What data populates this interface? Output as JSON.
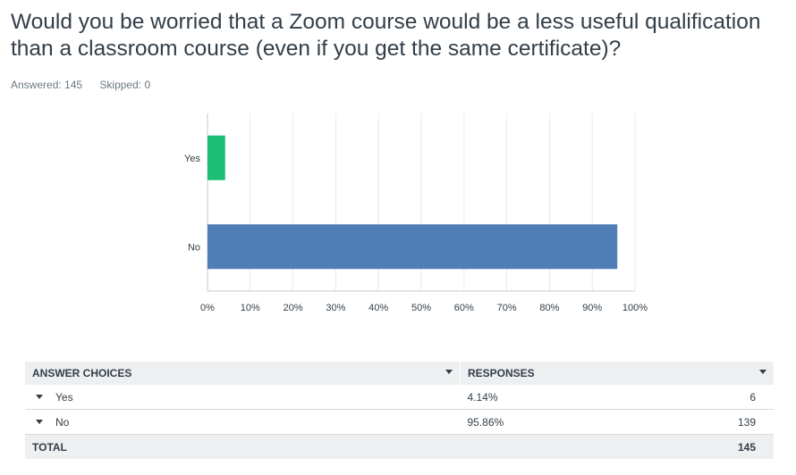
{
  "question": {
    "title": "Would you be worried that a Zoom course would be a less useful qualification than a classroom course (even if you get the same certificate)?",
    "answered": "Answered: 145",
    "skipped": "Skipped: 0"
  },
  "colors": {
    "yes": "#1cbf73",
    "no": "#4f7eb7",
    "grid": "#e8eaeb",
    "axis": "#c6cbce"
  },
  "chart_data": {
    "type": "bar",
    "orientation": "horizontal",
    "categories": [
      "Yes",
      "No"
    ],
    "values": [
      4.14,
      95.86
    ],
    "xlim": [
      0,
      100
    ],
    "x_ticks": [
      "0%",
      "10%",
      "20%",
      "30%",
      "40%",
      "50%",
      "60%",
      "70%",
      "80%",
      "90%",
      "100%"
    ],
    "grid": true
  },
  "table": {
    "headers": {
      "choices": "ANSWER CHOICES",
      "responses": "RESPONSES"
    },
    "rows": [
      {
        "label": "Yes",
        "percent": "4.14%",
        "count": "6"
      },
      {
        "label": "No",
        "percent": "95.86%",
        "count": "139"
      }
    ],
    "total": {
      "label": "TOTAL",
      "count": "145"
    }
  }
}
